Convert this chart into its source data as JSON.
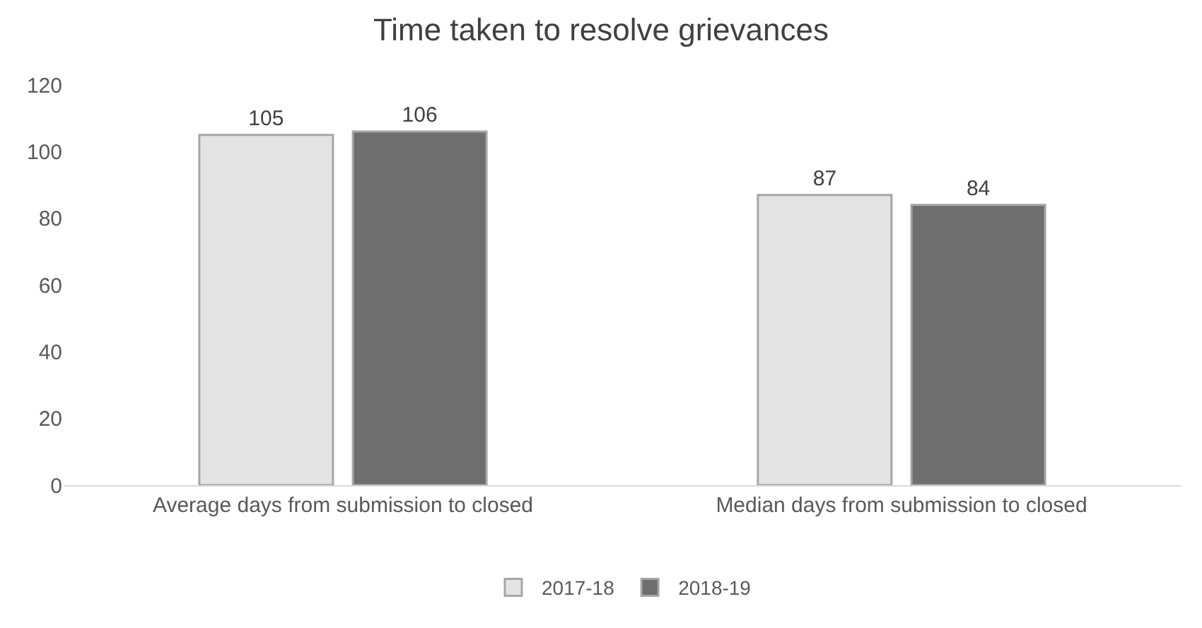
{
  "chart_data": {
    "type": "bar",
    "title": "Time taken to resolve grievances",
    "categories": [
      "Average days from submission to closed",
      "Median days from submission to closed"
    ],
    "series": [
      {
        "name": "2017-18",
        "color": "#e3e3e3",
        "values": [
          105,
          87
        ]
      },
      {
        "name": "2018-19",
        "color": "#6e6e6e",
        "values": [
          106,
          84
        ]
      }
    ],
    "ylim": [
      0,
      120
    ],
    "yticks": [
      0,
      20,
      40,
      60,
      80,
      100,
      120
    ],
    "grid": false,
    "legend": "bottom",
    "data_labels": true
  }
}
